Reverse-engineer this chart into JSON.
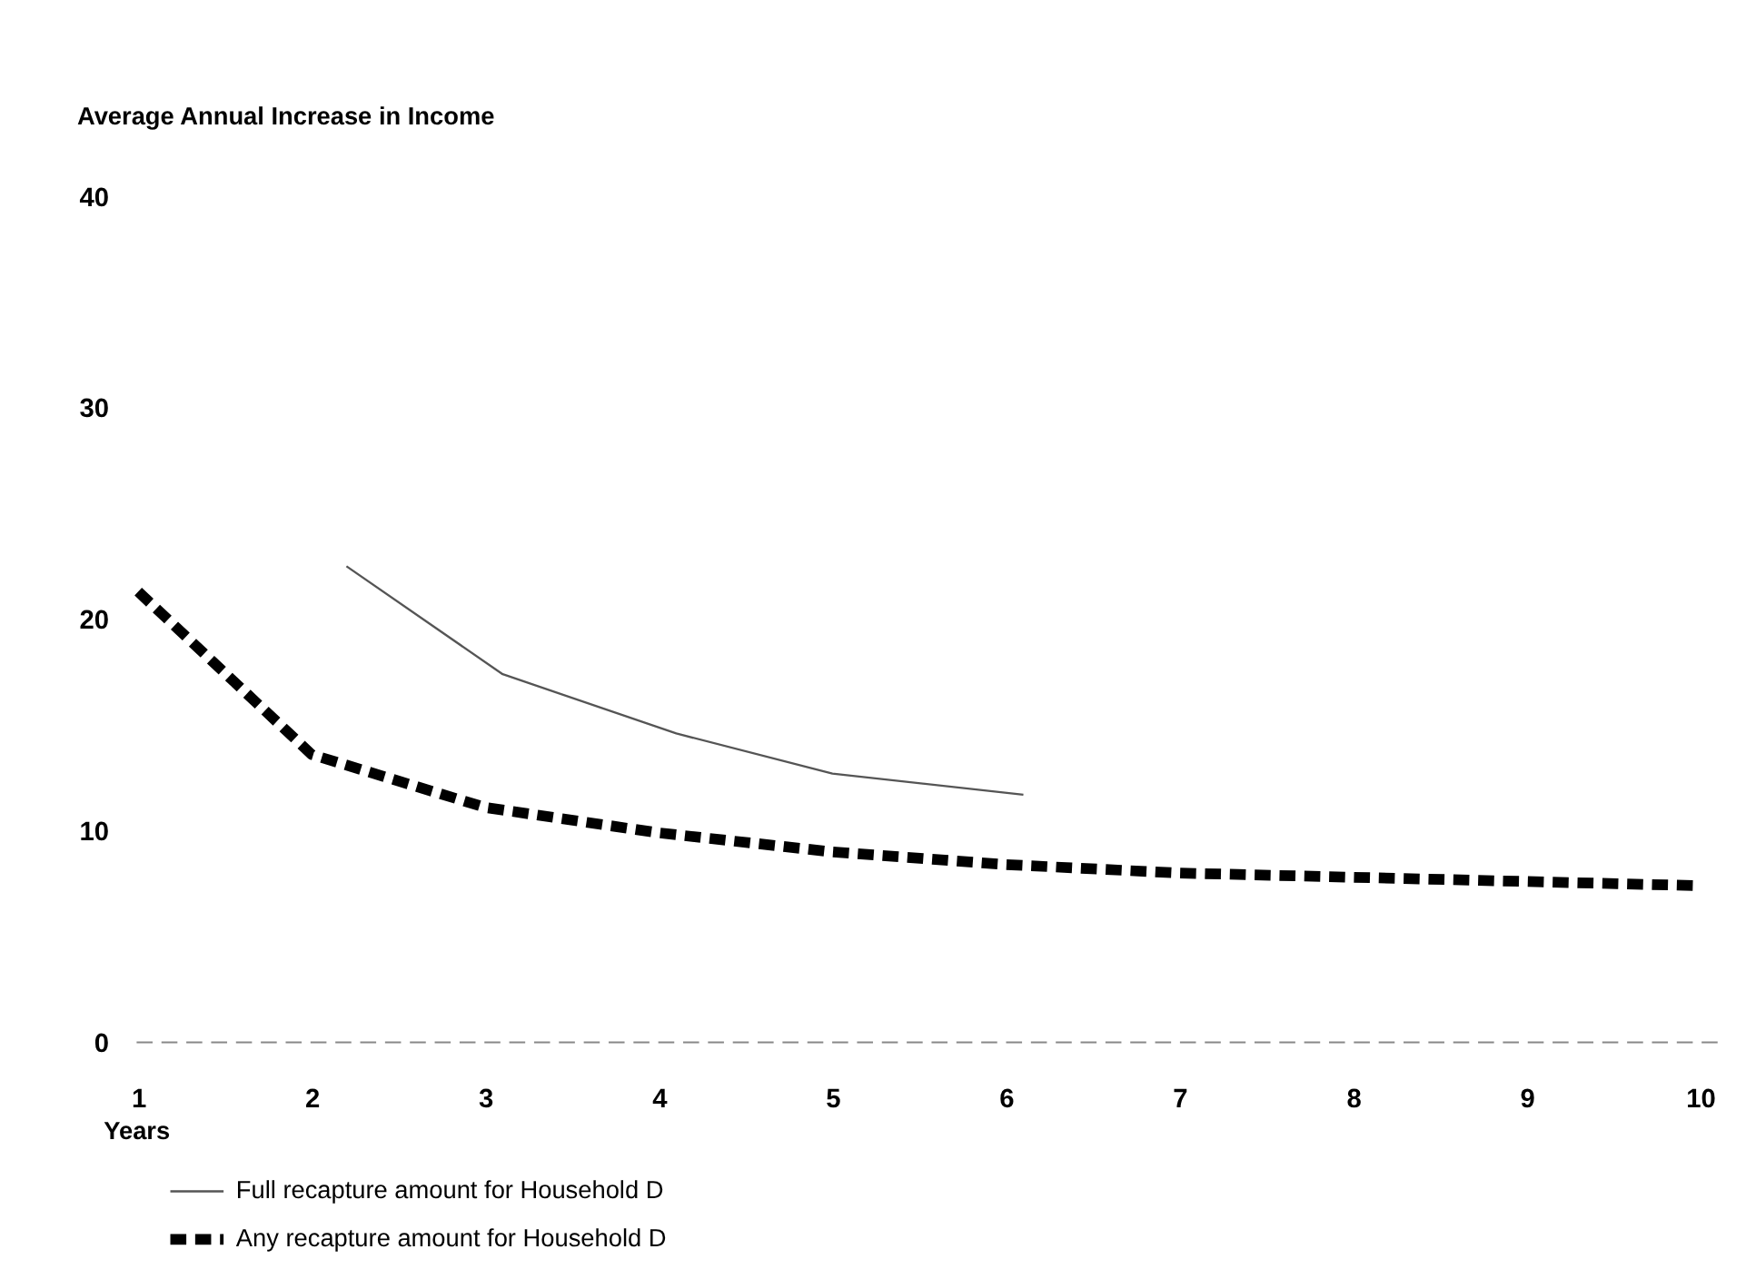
{
  "chart_data": {
    "type": "line",
    "ylabel": "Average Annual Increase in Income",
    "xlabel": "Years",
    "xlim": [
      0.95,
      10.1
    ],
    "xticks": [
      1,
      2,
      3,
      4,
      5,
      6,
      7,
      8,
      9,
      10
    ],
    "ylim": [
      0,
      40
    ],
    "yticks": [
      0,
      10,
      20,
      30,
      40
    ],
    "grid": false,
    "legend": "bottom left",
    "marker": "none",
    "ref_lines": [
      {
        "axis": "y",
        "value": 0,
        "color": "#888888",
        "line_style": "dashed"
      }
    ],
    "series": [
      {
        "name": "Full recapture amount for Household D",
        "color": "#555555",
        "line_style": "solid",
        "x": [
          2.2,
          3.1,
          4.1,
          5.0,
          6.1
        ],
        "values": [
          22.5,
          17.4,
          14.6,
          12.7,
          11.7
        ]
      },
      {
        "name": "Any recapture amount for Household D",
        "color": "#000000",
        "line_style": "dashed",
        "x": [
          1,
          2,
          3,
          4,
          5,
          6,
          7,
          8,
          9,
          10
        ],
        "values": [
          21.3,
          13.6,
          11.1,
          9.9,
          9.0,
          8.4,
          8.0,
          7.8,
          7.6,
          7.4
        ]
      }
    ]
  }
}
